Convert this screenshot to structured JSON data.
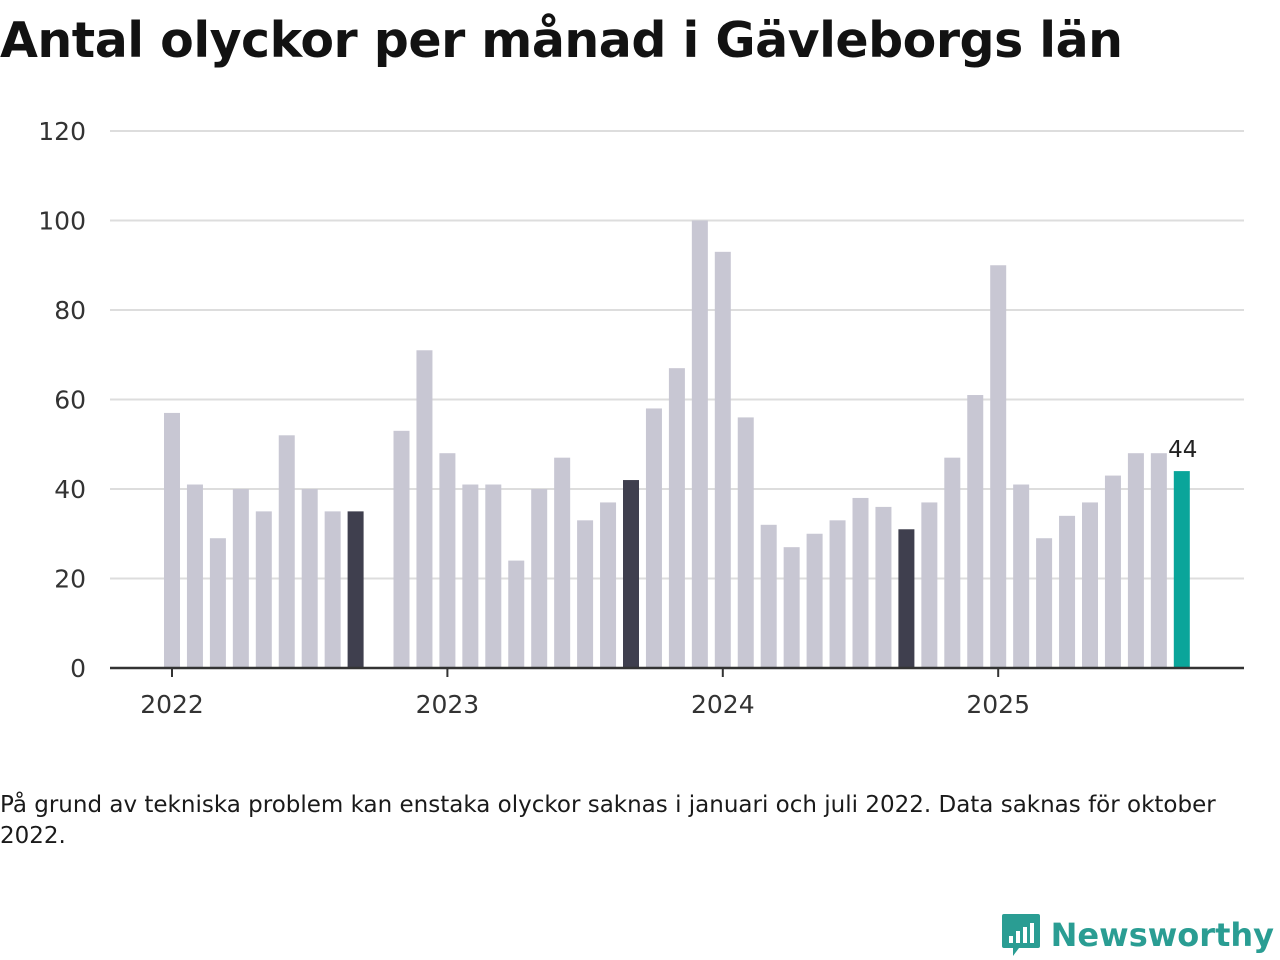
{
  "title": "Antal olyckor per månad i Gävleborgs län",
  "note": "På grund av tekniska problem kan enstaka olyckor saknas i januari och juli 2022. Data saknas för oktober 2022.",
  "brand": {
    "name": "Newsworthy",
    "icon": "newsworthy-logo-icon",
    "color": "#2a9d93"
  },
  "colors": {
    "default": "#c8c7d3",
    "september": "#3f3f4e",
    "latest": "#0aa59a",
    "grid": "#dddddd",
    "axis": "#333333"
  },
  "chart_data": {
    "type": "bar",
    "title": "Antal olyckor per månad i Gävleborgs län",
    "ylim": [
      0,
      120
    ],
    "yticks": [
      0,
      20,
      40,
      60,
      80,
      100,
      120
    ],
    "xticks": [
      {
        "label": "2022",
        "at": "2022-01"
      },
      {
        "label": "2023",
        "at": "2023-01"
      },
      {
        "label": "2024",
        "at": "2024-01"
      },
      {
        "label": "2025",
        "at": "2025-01"
      }
    ],
    "grid": true,
    "series": [
      {
        "values": [
          {
            "month": "2022-01",
            "value": 57
          },
          {
            "month": "2022-02",
            "value": 41
          },
          {
            "month": "2022-03",
            "value": 29
          },
          {
            "month": "2022-04",
            "value": 40
          },
          {
            "month": "2022-05",
            "value": 35
          },
          {
            "month": "2022-06",
            "value": 52
          },
          {
            "month": "2022-07",
            "value": 40
          },
          {
            "month": "2022-08",
            "value": 35
          },
          {
            "month": "2022-09",
            "value": 35,
            "highlight": "september"
          },
          {
            "month": "2022-11",
            "value": 53
          },
          {
            "month": "2022-12",
            "value": 71
          },
          {
            "month": "2023-01",
            "value": 48
          },
          {
            "month": "2023-02",
            "value": 41
          },
          {
            "month": "2023-03",
            "value": 41
          },
          {
            "month": "2023-04",
            "value": 24
          },
          {
            "month": "2023-05",
            "value": 40
          },
          {
            "month": "2023-06",
            "value": 47
          },
          {
            "month": "2023-07",
            "value": 33
          },
          {
            "month": "2023-08",
            "value": 37
          },
          {
            "month": "2023-09",
            "value": 42,
            "highlight": "september"
          },
          {
            "month": "2023-10",
            "value": 58
          },
          {
            "month": "2023-11",
            "value": 67
          },
          {
            "month": "2023-12",
            "value": 100
          },
          {
            "month": "2024-01",
            "value": 93
          },
          {
            "month": "2024-02",
            "value": 56
          },
          {
            "month": "2024-03",
            "value": 32
          },
          {
            "month": "2024-04",
            "value": 27
          },
          {
            "month": "2024-05",
            "value": 30
          },
          {
            "month": "2024-06",
            "value": 33
          },
          {
            "month": "2024-07",
            "value": 38
          },
          {
            "month": "2024-08",
            "value": 36
          },
          {
            "month": "2024-09",
            "value": 31,
            "highlight": "september"
          },
          {
            "month": "2024-10",
            "value": 37
          },
          {
            "month": "2024-11",
            "value": 47
          },
          {
            "month": "2024-12",
            "value": 61
          },
          {
            "month": "2025-01",
            "value": 90
          },
          {
            "month": "2025-02",
            "value": 41
          },
          {
            "month": "2025-03",
            "value": 29
          },
          {
            "month": "2025-04",
            "value": 34
          },
          {
            "month": "2025-05",
            "value": 37
          },
          {
            "month": "2025-06",
            "value": 43
          },
          {
            "month": "2025-07",
            "value": 48
          },
          {
            "month": "2025-08",
            "value": 48
          },
          {
            "month": "2025-09",
            "value": 44,
            "highlight": "latest",
            "label": "44"
          }
        ]
      }
    ]
  }
}
